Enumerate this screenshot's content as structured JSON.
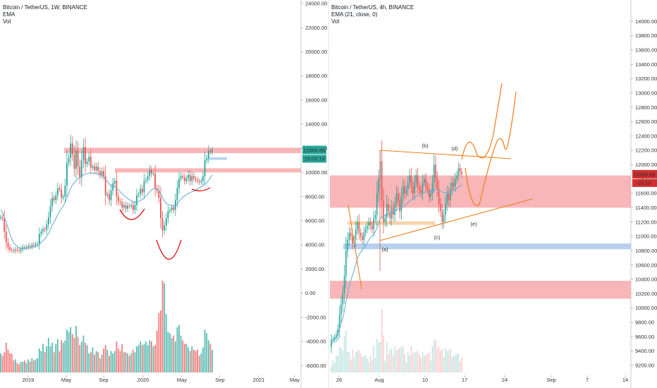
{
  "left_panel": {
    "title": "Bitcoin / TetherUS, 1W, BINANCE",
    "indicator_1": "EMA",
    "indicator_2": "Vol",
    "price_badge": "11866.88",
    "timer_badge": "16:03:19"
  },
  "right_panel": {
    "title": "Bitcoin / TetherUS, 4h, BINANCE",
    "indicator_1": "EMA (21, close, 0)",
    "indicator_2": "Vol",
    "price_badge": "11866.88",
    "timer_badge": "03:19"
  },
  "colors": {
    "up": "#26a69a",
    "down": "#ef5350",
    "ema": "#5ea9cf",
    "zone_red": "#f7a9ab",
    "zone_blue": "#aac8ec",
    "zone_orange": "#f8cfa1",
    "wave_orange": "#f07d1a",
    "badge_green": "#26a69a",
    "badge_red": "#d32f2f"
  },
  "chart_data": [
    {
      "type": "candlestick",
      "title": "Bitcoin / TetherUS, 1W, BINANCE",
      "x_ticks": [
        "2019",
        "May",
        "Sep",
        "2020",
        "May",
        "Sep",
        "2021",
        "May"
      ],
      "y_ticks": [
        "24000.00",
        "22000.00",
        "20000.00",
        "18000.00",
        "16000.00",
        "14000.00",
        "12000.00",
        "10000.00",
        "8000.00",
        "6000.00",
        "4000.00",
        "2000.00",
        "0.00",
        "-2000.00",
        "-4000.00",
        "-6000.00"
      ],
      "ylim": [
        -6400,
        24000
      ],
      "last_price": 11866.88,
      "close_series": [
        6300,
        6200,
        5100,
        4200,
        3800,
        3600,
        3550,
        3500,
        3600,
        3550,
        3500,
        3650,
        3800,
        3750,
        3800,
        3900,
        3850,
        4000,
        3950,
        4050,
        4100,
        4900,
        5100,
        5300,
        5250,
        5700,
        6300,
        7200,
        7900,
        7700,
        8100,
        8700,
        8600,
        7900,
        8000,
        8900,
        10800,
        11200,
        12400,
        11500,
        10300,
        11800,
        10500,
        9600,
        11000,
        12100,
        10700,
        10900,
        11300,
        10400,
        10500,
        10200,
        10500,
        10100,
        9800,
        10100,
        9700,
        8100,
        8200,
        7700,
        8500,
        9100,
        9300,
        8000,
        7600,
        7500,
        7100,
        7300,
        7000,
        7250,
        7200,
        7300,
        6900,
        7300,
        8100,
        8200,
        8650,
        8350,
        9300,
        9400,
        9700,
        10200,
        9900,
        9900,
        8700,
        8500,
        7900,
        6200,
        5200,
        5600,
        6200,
        6800,
        6900,
        7100,
        6900,
        7700,
        8700,
        9500,
        9700,
        9600,
        9300,
        9500,
        9800,
        9300,
        9700,
        9500,
        9400,
        9300,
        9200,
        9300,
        9700,
        11000,
        11200,
        11800,
        11700,
        11867
      ],
      "ema_series": [
        6900,
        6700,
        6300,
        5900,
        5400,
        4900,
        4500,
        4200,
        4000,
        3850,
        3750,
        3700,
        3700,
        3700,
        3720,
        3740,
        3760,
        3800,
        3840,
        3880,
        3930,
        4050,
        4200,
        4350,
        4500,
        4700,
        4950,
        5250,
        5600,
        5900,
        6200,
        6500,
        6800,
        7000,
        7200,
        7500,
        7900,
        8250,
        8650,
        8950,
        9150,
        9350,
        9500,
        9550,
        9650,
        9800,
        9850,
        9900,
        9950,
        9950,
        9950,
        9900,
        9900,
        9850,
        9800,
        9750,
        9650,
        9450,
        9250,
        9050,
        8900,
        8850,
        8800,
        8700,
        8550,
        8400,
        8250,
        8100,
        7950,
        7850,
        7750,
        7650,
        7550,
        7500,
        7550,
        7600,
        7700,
        7750,
        7900,
        8050,
        8200,
        8400,
        8550,
        8650,
        8650,
        8600,
        8500,
        8250,
        7900,
        7650,
        7450,
        7350,
        7300,
        7250,
        7200,
        7250,
        7400,
        7600,
        7800,
        7950,
        8050,
        8150,
        8250,
        8350,
        8400,
        8450,
        8550,
        8650,
        8750,
        8800,
        8900,
        9000,
        9150,
        9350,
        9550,
        9800
      ],
      "volume_series": [
        1600,
        1400,
        1700,
        2500,
        1900,
        1600,
        1600,
        1000,
        1100,
        800,
        700,
        900,
        900,
        1000,
        800,
        1100,
        900,
        1200,
        1000,
        1100,
        1200,
        2000,
        1800,
        2400,
        1700,
        2200,
        2900,
        2200,
        2500,
        1700,
        2400,
        2800,
        1800,
        2700,
        2500,
        2700,
        3600,
        3400,
        3800,
        3200,
        2900,
        3900,
        3000,
        2300,
        2600,
        3100,
        2500,
        2300,
        1600,
        1700,
        2100,
        1500,
        1800,
        1700,
        1200,
        1500,
        2000,
        2300,
        1900,
        1400,
        1800,
        1600,
        1800,
        2600,
        2000,
        1800,
        2400,
        1700,
        1700,
        1600,
        1400,
        1600,
        1900,
        1700,
        2200,
        2300,
        2600,
        2300,
        2400,
        2600,
        2300,
        2700,
        2600,
        2200,
        2300,
        3500,
        5000,
        5200,
        7700,
        7500,
        4900,
        3400,
        3300,
        2900,
        3100,
        2600,
        3800,
        4000,
        3100,
        2700,
        2400,
        2400,
        2100,
        1800,
        2200,
        1900,
        1800,
        1900,
        1400,
        1600,
        2100,
        3600,
        3300,
        2700,
        2400,
        1900
      ],
      "annotations": {
        "red_zones": [
          [
            11600,
            12050
          ],
          [
            10000,
            10350
          ]
        ],
        "blue_zone": [
          11050,
          11250
        ]
      }
    },
    {
      "type": "candlestick",
      "title": "Bitcoin / TetherUS, 4h, BINANCE",
      "x_ticks": [
        "26",
        "Aug",
        "10",
        "17",
        "24",
        "Sep",
        "7",
        "14"
      ],
      "y_ticks": [
        "14000.00",
        "13800.00",
        "13600.00",
        "13400.00",
        "13200.00",
        "13000.00",
        "12800.00",
        "12600.00",
        "12400.00",
        "12200.00",
        "12000.00",
        "11800.00",
        "11600.00",
        "11400.00",
        "11200.00",
        "11000.00",
        "10800.00",
        "10600.00",
        "10400.00",
        "10200.00",
        "10000.00",
        "9800.00",
        "9600.00",
        "9400.00",
        "9200.00"
      ],
      "ylim": [
        9130,
        14160
      ],
      "last_price": 11866.88,
      "close_series": [
        9550,
        9560,
        9580,
        9620,
        9700,
        9900,
        10050,
        10200,
        10450,
        10800,
        10950,
        11050,
        11000,
        10900,
        10950,
        11100,
        11200,
        11050,
        11000,
        10950,
        11050,
        11100,
        11150,
        11200,
        11150,
        11100,
        11250,
        11300,
        11600,
        11800,
        12050,
        11500,
        11200,
        11250,
        11450,
        11350,
        11250,
        11400,
        11300,
        11450,
        11600,
        11500,
        11350,
        11550,
        11700,
        11600,
        11650,
        11750,
        11850,
        11700,
        11600,
        11750,
        11850,
        11700,
        11650,
        11600,
        11750,
        11800,
        11700,
        11650,
        11550,
        11600,
        11750,
        12000,
        11800,
        11650,
        11450,
        11350,
        11200,
        11300,
        11450,
        11600,
        11500,
        11650,
        11750,
        11700,
        11800,
        11850,
        11950,
        11900,
        11867
      ],
      "ema_series": [
        9550,
        9560,
        9575,
        9600,
        9640,
        9710,
        9780,
        9860,
        9960,
        10090,
        10200,
        10310,
        10390,
        10460,
        10530,
        10610,
        10690,
        10740,
        10780,
        10810,
        10840,
        10870,
        10910,
        10950,
        10980,
        11000,
        11030,
        11070,
        11120,
        11180,
        11250,
        11270,
        11280,
        11290,
        11300,
        11310,
        11320,
        11330,
        11340,
        11350,
        11370,
        11380,
        11390,
        11400,
        11420,
        11430,
        11450,
        11470,
        11490,
        11510,
        11520,
        11540,
        11560,
        11570,
        11580,
        11590,
        11600,
        11610,
        11620,
        11620,
        11620,
        11620,
        11630,
        11650,
        11660,
        11660,
        11650,
        11640,
        11620,
        11610,
        11610,
        11610,
        11610,
        11620,
        11630,
        11640,
        11650,
        11670,
        11690,
        11700,
        11720
      ],
      "annotations": {
        "wave_labels": [
          "(a)",
          "(b)",
          "(c)",
          "(d)",
          "(e)"
        ],
        "red_zones": [
          [
            11400,
            11850
          ],
          [
            10130,
            10380
          ]
        ],
        "blue_zone": [
          10820,
          10900
        ],
        "orange_zone": [
          11170,
          11210
        ]
      }
    }
  ]
}
